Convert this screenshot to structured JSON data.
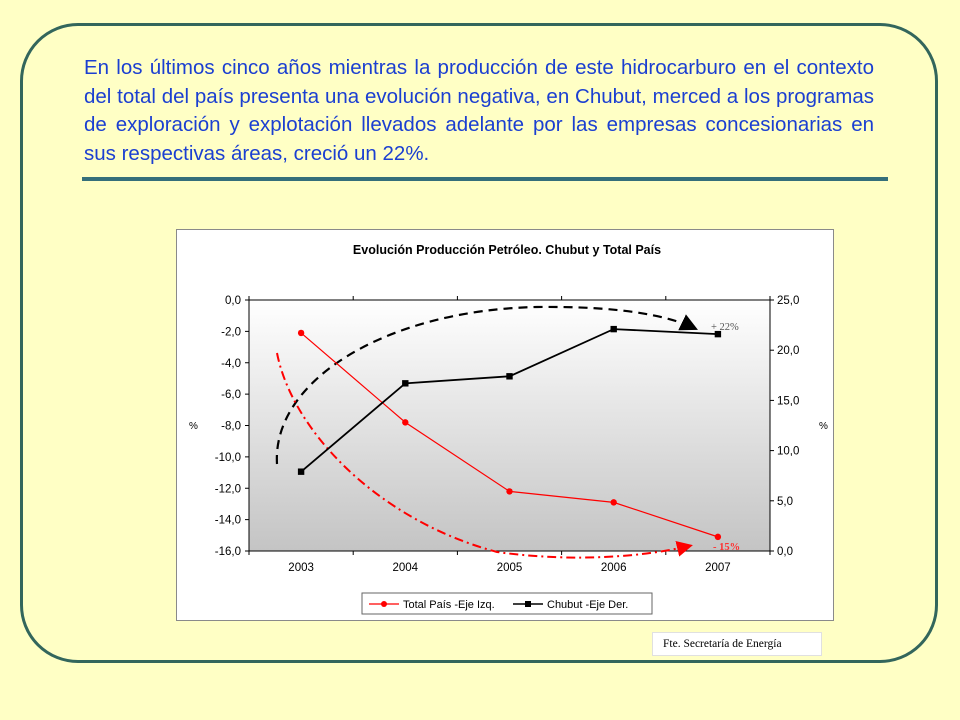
{
  "paragraph": "En los últimos cinco años mientras la producción de este hidrocarburo en el contexto del total del país presenta una evolución negativa, en Chubut, merced a los programas de exploración y explotación llevados adelante por las empresas concesionarias en sus respectivas áreas, creció un 22%.",
  "source": "Fte. Secretaría de Energía",
  "colors": {
    "text": "#1B3FD1",
    "frame": "#33665C",
    "background": "#FFFFC5",
    "total": "#FF0000",
    "chubut": "#000000"
  },
  "chart_data": {
    "type": "line",
    "title": "Evolución Producción Petróleo. Chubut y Total País",
    "categories": [
      "2003",
      "2004",
      "2005",
      "2006",
      "2007"
    ],
    "series": [
      {
        "name": "Total País -Eje Izq.",
        "axis": "left",
        "values": [
          -2.1,
          -7.8,
          -12.2,
          -12.9,
          -15.1
        ]
      },
      {
        "name": "Chubut -Eje Der.",
        "axis": "right",
        "values": [
          7.9,
          16.7,
          17.4,
          22.1,
          21.6
        ]
      }
    ],
    "y_left": {
      "label": "%",
      "range": [
        -16,
        0
      ],
      "ticks": [
        "0,0",
        "-2,0",
        "-4,0",
        "-6,0",
        "-8,0",
        "-10,0",
        "-12,0",
        "-14,0",
        "-16,0"
      ]
    },
    "y_right": {
      "label": "%",
      "range": [
        0,
        25
      ],
      "ticks": [
        "25,0",
        "20,0",
        "15,0",
        "10,0",
        "5,0",
        "0,0"
      ]
    },
    "annotations": {
      "chubut_change": "+ 22%",
      "total_change": "- 15%"
    },
    "legend_position": "bottom",
    "plot_background": "gradient white-to-gray"
  }
}
